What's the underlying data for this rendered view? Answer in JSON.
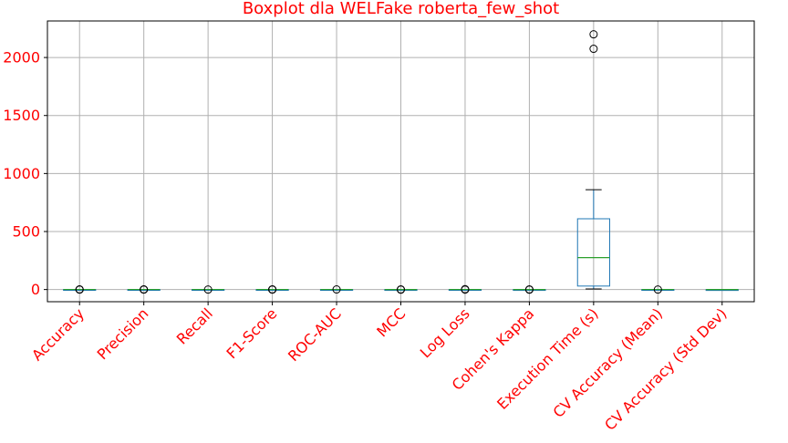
{
  "chart_data": {
    "type": "boxplot",
    "title": "Boxplot dla WELFake roberta_few_shot",
    "xlabel": "",
    "ylabel": "",
    "ylim": [
      -105,
      2315
    ],
    "yticks": [
      0,
      500,
      1000,
      1500,
      2000
    ],
    "grid": true,
    "colors": {
      "text": "#ff0000",
      "box": "#1f77b4",
      "median": "#2ca02c",
      "whisker": "#000000",
      "grid": "#b0b0b0"
    },
    "categories": [
      "Accuracy",
      "Precision",
      "Recall",
      "F1-Score",
      "ROC-AUC",
      "MCC",
      "Log Loss",
      "Cohen's Kappa",
      "Execution Time (s)",
      "CV Accuracy (Mean)",
      "CV Accuracy (Std Dev)"
    ],
    "boxes": [
      {
        "q1": 0.5,
        "median": 0.6,
        "q3": 0.7,
        "whisker_low": 0.4,
        "whisker_high": 0.9,
        "outliers": [
          0.0,
          0.1,
          1.0
        ]
      },
      {
        "q1": 0.5,
        "median": 0.6,
        "q3": 0.7,
        "whisker_low": 0.4,
        "whisker_high": 0.9,
        "outliers": [
          0.0,
          0.1,
          1.0
        ]
      },
      {
        "q1": 0.5,
        "median": 0.6,
        "q3": 0.7,
        "whisker_low": 0.4,
        "whisker_high": 0.9,
        "outliers": [
          0.0
        ]
      },
      {
        "q1": 0.5,
        "median": 0.6,
        "q3": 0.7,
        "whisker_low": 0.4,
        "whisker_high": 0.9,
        "outliers": [
          0.0,
          0.1,
          1.0
        ]
      },
      {
        "q1": 0.5,
        "median": 0.6,
        "q3": 0.7,
        "whisker_low": 0.4,
        "whisker_high": 0.8,
        "outliers": [
          1.0
        ]
      },
      {
        "q1": 0.0,
        "median": 0.2,
        "q3": 0.4,
        "whisker_low": -0.2,
        "whisker_high": 0.7,
        "outliers": [
          -1.0,
          1.0
        ]
      },
      {
        "q1": 0.6,
        "median": 0.7,
        "q3": 0.9,
        "whisker_low": 0.3,
        "whisker_high": 1.5,
        "outliers": [
          3.0,
          -0.5
        ]
      },
      {
        "q1": 0.0,
        "median": 0.2,
        "q3": 0.4,
        "whisker_low": -0.2,
        "whisker_high": 0.7,
        "outliers": [
          -1.0,
          1.0
        ]
      },
      {
        "q1": 30,
        "median": 275,
        "q3": 610,
        "whisker_low": 5,
        "whisker_high": 860,
        "outliers": [
          2075,
          2200
        ]
      },
      {
        "q1": 0.5,
        "median": 0.6,
        "q3": 0.7,
        "whisker_low": 0.4,
        "whisker_high": 0.9,
        "outliers": [
          0.0
        ]
      },
      {
        "q1": 0.01,
        "median": 0.02,
        "q3": 0.03,
        "whisker_low": 0.0,
        "whisker_high": 0.05,
        "outliers": []
      }
    ]
  }
}
